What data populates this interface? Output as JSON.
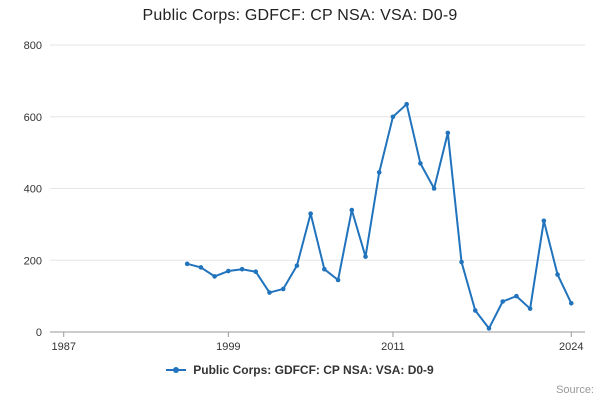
{
  "title": "Public Corps: GDFCF: CP NSA: VSA: D0-9",
  "legend": {
    "label": "Public Corps: GDFCF: CP NSA: VSA: D0-9"
  },
  "source_label": "Source:",
  "colors": {
    "line": "#2073bc",
    "grid": "#e6e6e6",
    "axis": "#999999",
    "tick_text": "#333333"
  },
  "chart_data": {
    "type": "line",
    "title": "Public Corps: GDFCF: CP NSA: VSA: D0-9",
    "series_name": "Public Corps: GDFCF: CP NSA: VSA: D0-9",
    "x": [
      1996,
      1997,
      1998,
      1999,
      2000,
      2001,
      2002,
      2003,
      2004,
      2005,
      2006,
      2007,
      2008,
      2009,
      2010,
      2011,
      2012,
      2013,
      2014,
      2015,
      2016,
      2017,
      2018,
      2019,
      2020,
      2021,
      2022,
      2023,
      2024
    ],
    "values": [
      190,
      180,
      155,
      170,
      175,
      168,
      110,
      120,
      185,
      330,
      175,
      145,
      340,
      210,
      445,
      600,
      635,
      470,
      400,
      555,
      195,
      60,
      10,
      85,
      100,
      65,
      310,
      160,
      80
    ],
    "xlabel": "",
    "ylabel": "",
    "xlim": [
      1986,
      2025
    ],
    "ylim": [
      0,
      800
    ],
    "xticks": [
      1987,
      1999,
      2011,
      2024
    ],
    "yticks": [
      0,
      200,
      400,
      600,
      800
    ],
    "grid": "horizontal",
    "legend_position": "bottom",
    "marker": "circle"
  }
}
